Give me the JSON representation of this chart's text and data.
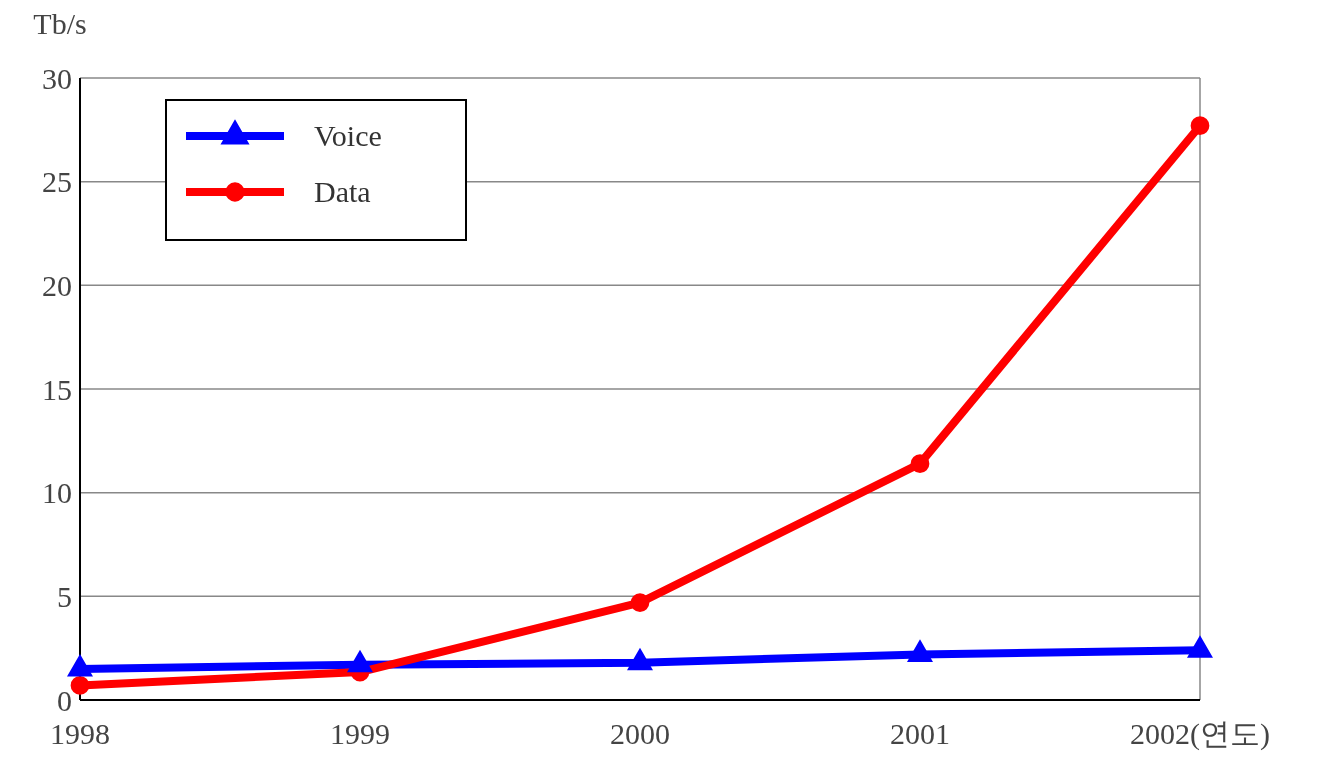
{
  "chart_data": {
    "type": "line",
    "ylabel": "Tb/s",
    "categories": [
      "1998",
      "1999",
      "2000",
      "2001",
      "2002(연도)"
    ],
    "series": [
      {
        "name": "Voice",
        "color": "#0000ff",
        "marker": "triangle",
        "values": [
          1.5,
          1.7,
          1.8,
          2.2,
          2.4
        ]
      },
      {
        "name": "Data",
        "color": "#ff0000",
        "marker": "circle",
        "values": [
          0.7,
          1.35,
          4.7,
          11.4,
          27.7
        ]
      }
    ],
    "ylim": [
      0,
      30
    ],
    "yticks": [
      0,
      5,
      10,
      15,
      20,
      25,
      30
    ],
    "grid": "y",
    "legend": "top left"
  }
}
